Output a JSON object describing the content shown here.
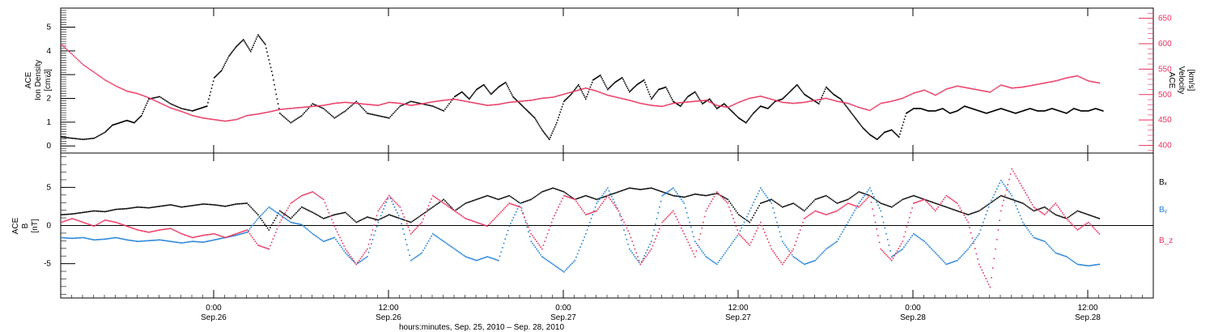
{
  "colors": {
    "black": "#000000",
    "red": "#e8335f",
    "blue": "#1f7fd6"
  },
  "chart_data": [
    {
      "type": "scatter",
      "panel": "top",
      "ylabel_lines": [
        "ACE",
        "Ion Density",
        "[cm⁻³]"
      ],
      "ylabel_right_lines": [
        "ACE",
        "Velocity",
        "[km/s]"
      ],
      "ylim": [
        -0.3,
        5.8
      ],
      "yticks": [
        "0",
        "1",
        "2",
        "3",
        "4",
        "5"
      ],
      "ylim_right": [
        385,
        670
      ],
      "yticks_right": [
        "400",
        "450",
        "500",
        "550",
        "600",
        "650"
      ],
      "series": [
        {
          "color": "black",
          "axis": "left",
          "x": [
            0,
            3,
            6,
            9,
            12,
            14,
            16,
            18,
            20,
            22,
            24,
            27,
            30,
            33,
            36,
            38,
            40,
            42,
            44,
            46,
            48,
            50,
            52,
            54,
            56,
            58,
            60,
            63,
            66,
            69,
            72,
            75,
            78,
            81,
            84,
            87,
            90,
            93,
            96,
            99,
            102,
            105,
            108,
            110,
            112,
            114,
            116,
            118,
            120,
            122,
            124,
            126,
            128,
            130,
            132,
            134,
            136,
            138,
            140,
            142,
            144,
            146,
            148,
            150,
            152,
            154,
            156,
            158,
            160,
            162,
            164,
            166,
            168,
            170,
            172,
            174,
            176,
            178,
            180,
            182,
            184,
            186,
            188,
            190,
            192,
            194,
            196,
            198,
            200,
            202,
            204,
            206,
            208,
            210,
            212,
            214,
            216,
            218,
            220,
            222,
            224,
            226,
            228,
            230,
            232,
            234,
            236,
            238,
            240,
            242,
            244,
            246,
            248,
            250,
            252,
            254,
            256,
            258,
            260,
            262,
            264,
            266,
            268,
            270,
            272,
            274,
            276,
            278,
            280,
            282,
            284,
            286
          ],
          "y": [
            0.4,
            0.35,
            0.3,
            0.35,
            0.6,
            0.9,
            1.0,
            1.1,
            1.0,
            1.3,
            2.0,
            2.1,
            1.8,
            1.6,
            1.5,
            1.6,
            1.7,
            2.9,
            3.2,
            3.8,
            4.2,
            4.5,
            4.0,
            4.7,
            4.3,
            3.0,
            1.4,
            1.0,
            1.3,
            1.8,
            1.6,
            1.2,
            1.5,
            1.9,
            1.4,
            1.3,
            1.2,
            1.7,
            1.9,
            1.8,
            1.7,
            1.5,
            2.1,
            2.3,
            2.0,
            2.4,
            2.6,
            2.2,
            2.5,
            2.7,
            2.1,
            1.8,
            1.5,
            1.2,
            0.7,
            0.3,
            1.0,
            1.9,
            2.2,
            2.6,
            2.0,
            2.8,
            3.0,
            2.4,
            2.7,
            2.9,
            2.3,
            2.6,
            2.8,
            2.0,
            2.4,
            2.5,
            1.9,
            1.7,
            2.1,
            2.3,
            1.8,
            2.0,
            1.6,
            1.8,
            1.5,
            1.2,
            1.0,
            1.4,
            1.7,
            1.6,
            1.9,
            2.0,
            2.3,
            2.6,
            2.2,
            2.0,
            1.8,
            2.5,
            2.2,
            2.0,
            1.6,
            1.2,
            0.8,
            0.5,
            0.3,
            0.6,
            0.7,
            0.4,
            1.4,
            1.6,
            1.6,
            1.5,
            1.5,
            1.6,
            1.4,
            1.5,
            1.7,
            1.6,
            1.5,
            1.4,
            1.5,
            1.6,
            1.5,
            1.4,
            1.5,
            1.6,
            1.5,
            1.5,
            1.6,
            1.5,
            1.4,
            1.6,
            1.5,
            1.5,
            1.6,
            1.5
          ]
        },
        {
          "color": "red",
          "axis": "right",
          "x": [
            0,
            3,
            6,
            9,
            12,
            15,
            18,
            21,
            24,
            27,
            30,
            33,
            36,
            39,
            42,
            45,
            48,
            51,
            54,
            57,
            60,
            63,
            66,
            69,
            72,
            75,
            78,
            81,
            84,
            87,
            90,
            93,
            96,
            99,
            102,
            105,
            108,
            111,
            114,
            117,
            120,
            123,
            126,
            129,
            132,
            135,
            138,
            141,
            144,
            147,
            150,
            153,
            156,
            159,
            162,
            165,
            168,
            171,
            174,
            177,
            180,
            183,
            186,
            189,
            192,
            195,
            198,
            201,
            204,
            207,
            210,
            213,
            216,
            219,
            222,
            225,
            228,
            231,
            234,
            237,
            240,
            243,
            246,
            249,
            252,
            255,
            258,
            261,
            264,
            267,
            270,
            273,
            276,
            279,
            282,
            285
          ],
          "y": [
            600,
            580,
            560,
            545,
            530,
            518,
            508,
            503,
            495,
            485,
            475,
            468,
            460,
            455,
            452,
            449,
            452,
            460,
            463,
            467,
            472,
            474,
            476,
            478,
            480,
            484,
            486,
            484,
            482,
            480,
            486,
            484,
            480,
            483,
            487,
            490,
            492,
            488,
            484,
            480,
            482,
            486,
            488,
            490,
            494,
            496,
            502,
            508,
            514,
            508,
            500,
            495,
            490,
            484,
            480,
            478,
            484,
            486,
            488,
            490,
            480,
            476,
            486,
            494,
            498,
            492,
            486,
            484,
            486,
            490,
            494,
            488,
            484,
            476,
            470,
            484,
            488,
            494,
            504,
            510,
            500,
            512,
            518,
            514,
            510,
            506,
            520,
            514,
            516,
            520,
            524,
            528,
            534,
            538,
            528,
            524
          ]
        }
      ]
    },
    {
      "type": "scatter",
      "panel": "bottom",
      "ylabel_lines": [
        "ACE",
        "B",
        "[nT]"
      ],
      "ylim": [
        -9.5,
        9.5
      ],
      "yticks": [
        "-5",
        "0",
        "5"
      ],
      "legend": [
        "Bₓ",
        "Bᵧ",
        "B_z"
      ],
      "series": [
        {
          "name": "Bₓ",
          "color": "black",
          "x": [
            0,
            3,
            6,
            9,
            12,
            15,
            18,
            21,
            24,
            27,
            30,
            33,
            36,
            39,
            42,
            45,
            48,
            51,
            54,
            57,
            60,
            63,
            66,
            69,
            72,
            75,
            78,
            81,
            84,
            87,
            90,
            93,
            96,
            99,
            102,
            105,
            108,
            111,
            114,
            117,
            120,
            123,
            126,
            129,
            132,
            135,
            138,
            141,
            144,
            147,
            150,
            153,
            156,
            159,
            162,
            165,
            168,
            171,
            174,
            177,
            180,
            183,
            186,
            189,
            192,
            195,
            198,
            201,
            204,
            207,
            210,
            213,
            216,
            219,
            222,
            225,
            228,
            231,
            234,
            237,
            240,
            243,
            246,
            249,
            252,
            255,
            258,
            261,
            264,
            267,
            270,
            273,
            276,
            279,
            282,
            285
          ],
          "y": [
            1.5,
            1.6,
            1.8,
            2.0,
            1.9,
            2.2,
            2.3,
            2.5,
            2.4,
            2.6,
            2.8,
            2.5,
            2.7,
            2.9,
            2.8,
            2.6,
            2.9,
            3.0,
            1.5,
            -0.5,
            2.0,
            1.0,
            2.5,
            1.8,
            1.0,
            1.5,
            1.8,
            0.5,
            1.2,
            0.8,
            1.5,
            1.0,
            0.5,
            1.5,
            2.5,
            3.5,
            2.0,
            3.0,
            3.5,
            4.0,
            3.5,
            4.0,
            3.0,
            3.5,
            4.5,
            5.0,
            4.5,
            3.5,
            4.0,
            3.5,
            4.0,
            4.5,
            5.0,
            4.8,
            5.0,
            4.5,
            4.0,
            3.8,
            4.2,
            4.0,
            4.3,
            3.5,
            1.5,
            0.5,
            3.0,
            3.5,
            2.5,
            3.0,
            2.0,
            3.5,
            4.0,
            3.0,
            3.5,
            4.5,
            4.0,
            3.0,
            2.5,
            3.5,
            4.0,
            3.5,
            3.0,
            2.5,
            2.0,
            1.5,
            2.0,
            3.0,
            4.0,
            3.5,
            3.0,
            2.0,
            2.5,
            1.5,
            1.0,
            2.0,
            1.5,
            1.0
          ]
        },
        {
          "name": "Bᵧ",
          "color": "blue",
          "x": [
            0,
            3,
            6,
            9,
            12,
            15,
            18,
            21,
            24,
            27,
            30,
            33,
            36,
            39,
            42,
            45,
            48,
            51,
            54,
            57,
            60,
            63,
            66,
            69,
            72,
            75,
            78,
            81,
            84,
            87,
            90,
            93,
            96,
            99,
            102,
            105,
            108,
            111,
            114,
            117,
            120,
            123,
            126,
            129,
            132,
            135,
            138,
            141,
            144,
            147,
            150,
            153,
            156,
            159,
            162,
            165,
            168,
            171,
            174,
            177,
            180,
            183,
            186,
            189,
            192,
            195,
            198,
            201,
            204,
            207,
            210,
            213,
            216,
            219,
            222,
            225,
            228,
            231,
            234,
            237,
            240,
            243,
            246,
            249,
            252,
            255,
            258,
            261,
            264,
            267,
            270,
            273,
            276,
            279,
            282,
            285
          ],
          "y": [
            -1.5,
            -1.6,
            -1.5,
            -1.8,
            -1.7,
            -1.5,
            -1.8,
            -2.0,
            -1.9,
            -1.8,
            -2.0,
            -2.2,
            -2.0,
            -2.1,
            -1.8,
            -1.5,
            -1.2,
            -0.8,
            1.0,
            2.5,
            1.5,
            0.5,
            0.2,
            -1.0,
            -2.0,
            -1.5,
            -3.5,
            -5.0,
            -4.0,
            0.5,
            4.0,
            1.0,
            -4.5,
            -3.5,
            -1.0,
            -2.0,
            -3.0,
            -4.0,
            -4.5,
            -4.0,
            -4.5,
            0.0,
            3.0,
            -2.0,
            -4.0,
            -5.0,
            -6.0,
            -4.5,
            -1.0,
            3.0,
            5.0,
            2.0,
            -3.0,
            -5.0,
            -2.0,
            4.0,
            5.0,
            3.0,
            -2.0,
            -4.0,
            -5.0,
            -3.0,
            -1.0,
            2.0,
            5.0,
            3.0,
            -2.0,
            -4.0,
            -5.0,
            -4.5,
            -3.0,
            -2.0,
            0.5,
            3.0,
            5.0,
            2.0,
            -4.0,
            -3.0,
            -1.0,
            -2.0,
            -3.5,
            -5.0,
            -4.5,
            -3.0,
            -1.0,
            3.0,
            6.0,
            4.0,
            0.5,
            -1.5,
            -2.0,
            -3.5,
            -4.0,
            -5.0,
            -5.2,
            -5.0
          ]
        },
        {
          "name": "B_z",
          "color": "red",
          "x": [
            0,
            3,
            6,
            9,
            12,
            15,
            18,
            21,
            24,
            27,
            30,
            33,
            36,
            39,
            42,
            45,
            48,
            51,
            54,
            57,
            60,
            63,
            66,
            69,
            72,
            75,
            78,
            81,
            84,
            87,
            90,
            93,
            96,
            99,
            102,
            105,
            108,
            111,
            114,
            117,
            120,
            123,
            126,
            129,
            132,
            135,
            138,
            141,
            144,
            147,
            150,
            153,
            156,
            159,
            162,
            165,
            168,
            171,
            174,
            177,
            180,
            183,
            186,
            189,
            192,
            195,
            198,
            201,
            204,
            207,
            210,
            213,
            216,
            219,
            222,
            225,
            228,
            231,
            234,
            237,
            240,
            243,
            246,
            249,
            252,
            255,
            258,
            261,
            264,
            267,
            270,
            273,
            276,
            279,
            282,
            285
          ],
          "y": [
            0.5,
            1.0,
            0.5,
            0.0,
            0.8,
            0.5,
            0.0,
            -0.5,
            -0.8,
            -0.5,
            -0.3,
            -1.0,
            -1.5,
            -1.2,
            -1.0,
            -1.5,
            -1.0,
            -0.5,
            -2.5,
            -3.0,
            0.5,
            3.0,
            4.0,
            4.5,
            3.5,
            0.0,
            -3.0,
            -5.0,
            -3.0,
            2.0,
            4.0,
            2.5,
            -1.0,
            0.5,
            4.0,
            3.0,
            2.0,
            1.0,
            0.5,
            0.0,
            1.5,
            3.0,
            2.5,
            -1.0,
            -3.0,
            1.0,
            4.0,
            3.5,
            1.5,
            2.0,
            4.0,
            2.0,
            -1.0,
            -5.0,
            -3.0,
            0.5,
            2.0,
            -1.0,
            -4.0,
            2.0,
            4.5,
            3.0,
            -1.0,
            -2.5,
            0.5,
            -3.0,
            -5.0,
            -3.0,
            1.0,
            2.0,
            1.5,
            2.0,
            3.0,
            2.5,
            4.0,
            -3.0,
            -4.5,
            -2.0,
            3.0,
            3.5,
            2.0,
            4.0,
            3.0,
            0.5,
            -5.0,
            -8.0,
            2.0,
            7.5,
            5.0,
            2.5,
            1.5,
            3.0,
            1.0,
            -0.5,
            0.5,
            -1.0
          ]
        }
      ]
    }
  ],
  "xaxis": {
    "range": [
      0,
      300
    ],
    "ticks": [
      {
        "x": 42,
        "time": "0:00",
        "date": "Sep.26"
      },
      {
        "x": 90,
        "time": "12:00",
        "date": "Sep.26"
      },
      {
        "x": 138,
        "time": "0:00",
        "date": "Sep.27"
      },
      {
        "x": 186,
        "time": "12:00",
        "date": "Sep.27"
      },
      {
        "x": 234,
        "time": "0:00",
        "date": "Sep.28"
      },
      {
        "x": 282,
        "time": "12:00",
        "date": "Sep.28"
      }
    ],
    "xlabel": "hours:minutes, Sep. 25, 2010 – Sep. 28, 2010"
  }
}
